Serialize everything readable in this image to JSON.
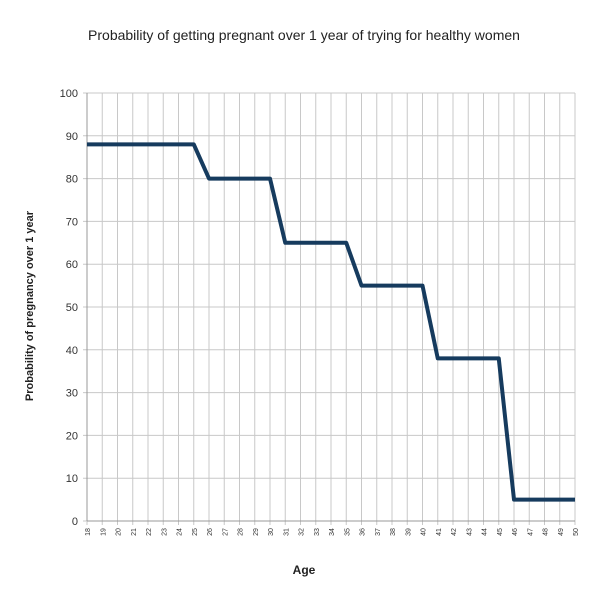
{
  "chart_data": {
    "type": "line",
    "title": "Probability of getting pregnant over 1 year of trying for healthy women",
    "xlabel": "Age",
    "ylabel": "Probability of pregnancy over 1 year",
    "x": [
      18,
      19,
      20,
      21,
      22,
      23,
      24,
      25,
      26,
      27,
      28,
      29,
      30,
      31,
      32,
      33,
      34,
      35,
      36,
      37,
      38,
      39,
      40,
      41,
      42,
      43,
      44,
      45,
      46,
      47,
      48,
      49,
      50
    ],
    "series": [
      {
        "name": "Probability",
        "color": "#163b5e",
        "values": [
          88,
          88,
          88,
          88,
          88,
          88,
          88,
          88,
          80,
          80,
          80,
          80,
          80,
          65,
          65,
          65,
          65,
          65,
          55,
          55,
          55,
          55,
          55,
          38,
          38,
          38,
          38,
          38,
          5,
          5,
          5,
          5,
          5
        ]
      }
    ],
    "xlim": [
      18,
      50
    ],
    "ylim": [
      0,
      100
    ],
    "yticks": [
      0,
      10,
      20,
      30,
      40,
      50,
      60,
      70,
      80,
      90,
      100
    ],
    "grid": true,
    "legend": "none"
  }
}
